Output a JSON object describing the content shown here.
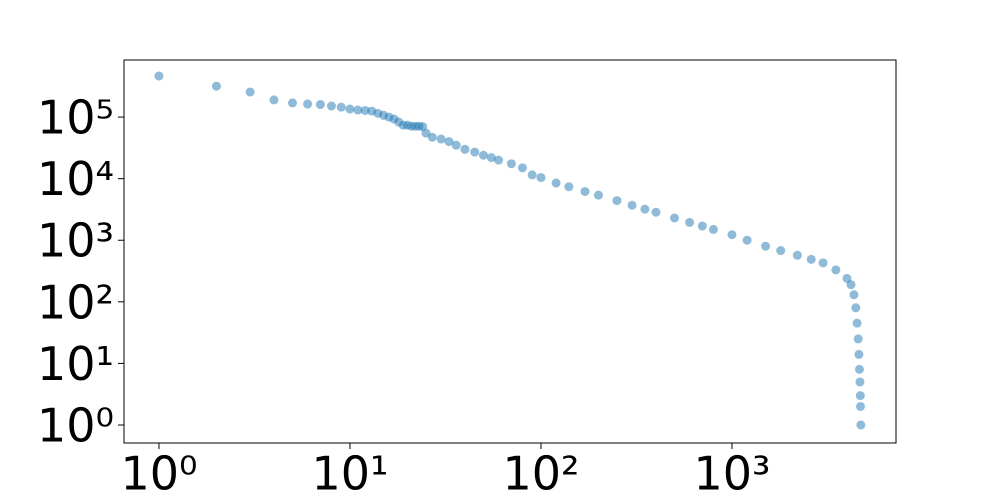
{
  "chart_data": {
    "type": "scatter",
    "log_x": true,
    "log_y": true,
    "color": "#1f77b4",
    "opacity": 0.5,
    "x": [
      1,
      2,
      3,
      4,
      5,
      6,
      7,
      8,
      9,
      10,
      11,
      12,
      13,
      14,
      15,
      16,
      17,
      18,
      19,
      20,
      21,
      22,
      23,
      24,
      25,
      27,
      30,
      33,
      36,
      40,
      45,
      50,
      55,
      60,
      70,
      80,
      90,
      100,
      120,
      140,
      170,
      200,
      250,
      300,
      350,
      400,
      500,
      600,
      700,
      800,
      1000,
      1200,
      1500,
      1800,
      2200,
      2600,
      3000,
      3500,
      4000,
      4200,
      4350,
      4450,
      4520,
      4580,
      4620,
      4650,
      4680,
      4700,
      4710,
      4730
    ],
    "y": [
      464000,
      317000,
      255000,
      190000,
      170000,
      163000,
      160000,
      151000,
      145000,
      135000,
      130000,
      128000,
      125000,
      115000,
      107000,
      100000,
      93000,
      83000,
      74000,
      74000,
      71000,
      71000,
      71000,
      70000,
      55000,
      47000,
      44000,
      40000,
      35000,
      30000,
      27000,
      24000,
      22000,
      20000,
      17500,
      15000,
      11500,
      10400,
      8500,
      7400,
      6200,
      5400,
      4400,
      3700,
      3200,
      2850,
      2300,
      1950,
      1700,
      1500,
      1230,
      1000,
      800,
      680,
      570,
      490,
      430,
      330,
      240,
      190,
      130,
      80,
      45,
      25,
      14,
      8,
      5,
      3,
      2,
      1
    ],
    "xlim": [
      0.656,
      7225
    ],
    "ylim": [
      0.51,
      845000
    ],
    "xticks": [
      {
        "value": 1,
        "label": "10⁰"
      },
      {
        "value": 10,
        "label": "10¹"
      },
      {
        "value": 100,
        "label": "10²"
      },
      {
        "value": 1000,
        "label": "10³"
      }
    ],
    "yticks": [
      {
        "value": 1,
        "label": "10⁰"
      },
      {
        "value": 10,
        "label": "10¹"
      },
      {
        "value": 100,
        "label": "10²"
      },
      {
        "value": 1000,
        "label": "10³"
      },
      {
        "value": 10000,
        "label": "10⁴"
      },
      {
        "value": 100000,
        "label": "10⁵"
      }
    ],
    "grid": false
  }
}
